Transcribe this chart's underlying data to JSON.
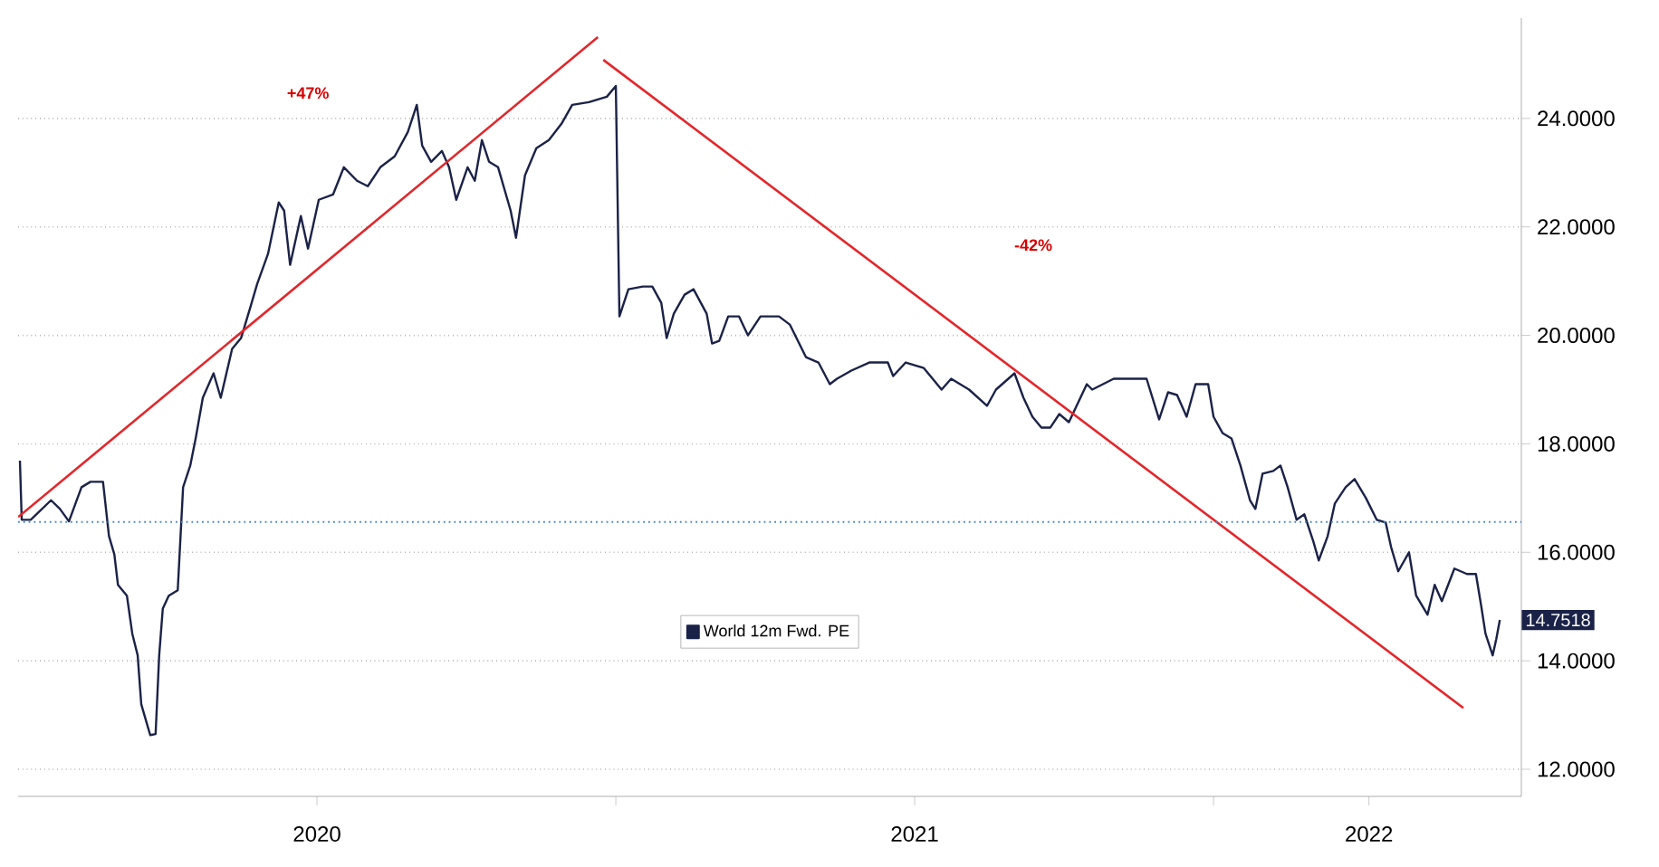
{
  "chart_data": {
    "type": "line",
    "xlim": [
      2020.0,
      2022.515
    ],
    "ylim": [
      11.5,
      25.85
    ],
    "xticks": [
      {
        "value": 2020.5,
        "label": "2020"
      },
      {
        "value": 2021.0,
        "label": null
      },
      {
        "value": 2021.5,
        "label": "2021"
      },
      {
        "value": 2022.0,
        "label": null
      },
      {
        "value": 2022.26,
        "label": "2022"
      }
    ],
    "yticks": [
      {
        "value": 12,
        "label": "12.0000"
      },
      {
        "value": 14,
        "label": "14.0000"
      },
      {
        "value": 16,
        "label": "16.0000"
      },
      {
        "value": 18,
        "label": "18.0000"
      },
      {
        "value": 20,
        "label": "20.0000"
      },
      {
        "value": 22,
        "label": "22.0000"
      },
      {
        "value": 24,
        "label": "24.0000"
      }
    ],
    "grid": "y",
    "legend": "bottom",
    "marker": "none",
    "line_style": "solid",
    "ref_lines": [
      {
        "axis": "y",
        "value": 16.56,
        "color": "#4a86c5",
        "line_style": "dotted"
      }
    ],
    "annotations": [
      "+47%",
      "-42%"
    ],
    "series": [
      {
        "name": "World 12m Fwd. PE",
        "color": "#1b2248",
        "x": [
          2020.003,
          2020.006,
          2020.021,
          2020.055,
          2020.07,
          2020.085,
          2020.106,
          2020.121,
          2020.142,
          2020.152,
          2020.161,
          2020.167,
          2020.182,
          2020.191,
          2020.2,
          2020.206,
          2020.212,
          2020.221,
          2020.23,
          2020.236,
          2020.242,
          2020.252,
          2020.267,
          2020.276,
          2020.288,
          2020.297,
          2020.309,
          2020.327,
          2020.339,
          2020.358,
          2020.373,
          2020.388,
          2020.4,
          2020.418,
          2020.436,
          2020.445,
          2020.455,
          2020.473,
          2020.485,
          2020.503,
          2020.527,
          2020.545,
          2020.567,
          2020.585,
          2020.606,
          2020.63,
          2020.652,
          2020.667,
          2020.676,
          2020.691,
          2020.709,
          2020.721,
          2020.733,
          2020.752,
          2020.764,
          2020.776,
          2020.788,
          2020.803,
          2020.824,
          2020.833,
          2020.848,
          2020.867,
          2020.888,
          2020.909,
          2020.927,
          2020.955,
          2020.985,
          2021.0,
          2021.006,
          2021.021,
          2021.045,
          2021.061,
          2021.076,
          2021.085,
          2021.097,
          2021.115,
          2021.13,
          2021.152,
          2021.161,
          2021.173,
          2021.188,
          2021.206,
          2021.221,
          2021.242,
          2021.273,
          2021.291,
          2021.318,
          2021.339,
          2021.358,
          2021.37,
          2021.394,
          2021.424,
          2021.455,
          2021.464,
          2021.485,
          2021.515,
          2021.545,
          2021.561,
          2021.591,
          2021.621,
          2021.636,
          2021.667,
          2021.682,
          2021.697,
          2021.712,
          2021.727,
          2021.742,
          2021.758,
          2021.788,
          2021.797,
          2021.833,
          2021.864,
          2021.888,
          2021.909,
          2021.924,
          2021.939,
          2021.955,
          2021.97,
          2021.991,
          2022.0,
          2022.015,
          2022.03,
          2022.045,
          2022.061,
          2022.07,
          2022.082,
          2022.1,
          2022.112,
          2022.124,
          2022.139,
          2022.152,
          2022.167,
          2022.176,
          2022.191,
          2022.203,
          2022.221,
          2022.236,
          2022.255,
          2022.273,
          2022.288,
          2022.297,
          2022.309,
          2022.327,
          2022.339,
          2022.358,
          2022.37,
          2022.382,
          2022.403,
          2022.424,
          2022.439,
          2022.448,
          2022.455,
          2022.461,
          2022.467,
          2022.473,
          2022.479
        ],
        "values": [
          17.69,
          16.6,
          16.6,
          16.96,
          16.8,
          16.57,
          17.2,
          17.3,
          17.3,
          16.3,
          15.96,
          15.4,
          15.2,
          14.5,
          14.1,
          13.2,
          12.97,
          12.63,
          12.65,
          14.1,
          14.96,
          15.2,
          15.3,
          17.2,
          17.6,
          18.1,
          18.85,
          19.3,
          18.85,
          19.75,
          19.95,
          20.5,
          20.95,
          21.5,
          22.45,
          22.3,
          21.3,
          22.2,
          21.6,
          22.5,
          22.6,
          23.1,
          22.85,
          22.75,
          23.1,
          23.3,
          23.75,
          24.25,
          23.5,
          23.2,
          23.4,
          23.1,
          22.5,
          23.1,
          22.85,
          23.6,
          23.2,
          23.1,
          22.3,
          21.8,
          22.95,
          23.45,
          23.6,
          23.9,
          24.25,
          24.3,
          24.4,
          24.6,
          20.35,
          20.85,
          20.9,
          20.9,
          20.6,
          19.95,
          20.4,
          20.75,
          20.85,
          20.4,
          19.85,
          19.9,
          20.35,
          20.35,
          20.0,
          20.35,
          20.35,
          20.2,
          19.6,
          19.5,
          19.1,
          19.2,
          19.35,
          19.5,
          19.5,
          19.25,
          19.5,
          19.4,
          19.0,
          19.2,
          19.0,
          18.7,
          19.0,
          19.3,
          18.85,
          18.5,
          18.3,
          18.3,
          18.55,
          18.4,
          19.1,
          19.0,
          19.2,
          19.2,
          19.2,
          18.45,
          18.95,
          18.9,
          18.5,
          19.1,
          19.1,
          18.5,
          18.2,
          18.1,
          17.6,
          16.96,
          16.8,
          17.45,
          17.5,
          17.6,
          17.2,
          16.6,
          16.7,
          16.2,
          15.85,
          16.3,
          16.9,
          17.2,
          17.35,
          17.0,
          16.6,
          16.55,
          16.1,
          15.65,
          16.0,
          15.2,
          14.85,
          15.4,
          15.1,
          15.7,
          15.6,
          15.6,
          15.0,
          14.5,
          14.3,
          14.1,
          14.4,
          14.7518
        ],
        "value_labels": [
          null,
          null,
          null,
          null,
          null,
          null,
          null,
          null,
          null,
          null,
          null,
          null,
          null,
          null,
          null,
          null,
          null,
          null,
          null,
          null,
          null,
          null,
          null,
          null,
          null,
          null,
          null,
          null,
          null,
          null,
          null,
          null,
          null,
          null,
          null,
          null,
          null,
          null,
          null,
          null,
          null,
          null,
          null,
          null,
          null,
          null,
          null,
          null,
          null,
          null,
          null,
          null,
          null,
          null,
          null,
          null,
          null,
          null,
          null,
          null,
          null,
          null,
          null,
          null,
          null,
          null,
          null,
          null,
          null,
          null,
          null,
          null,
          null,
          null,
          null,
          null,
          null,
          null,
          null,
          null,
          null,
          null,
          null,
          null,
          null,
          null,
          null,
          null,
          null,
          null,
          null,
          null,
          null,
          null,
          null,
          null,
          null,
          null,
          null,
          null,
          null,
          null,
          null,
          null,
          null,
          null,
          null,
          null,
          null,
          null,
          null,
          null,
          null,
          null,
          null,
          null,
          null,
          null,
          null,
          null,
          null,
          null,
          null,
          null,
          null,
          null,
          null,
          null,
          null,
          null,
          null,
          null,
          null,
          null,
          null,
          null,
          null,
          null,
          null,
          null,
          null,
          null,
          null,
          null,
          null,
          null,
          null,
          null,
          null,
          null,
          null,
          null,
          null,
          null,
          null,
          "14.7518"
        ]
      },
      {
        "type": "line",
        "color": "#e3262b",
        "x": [
          2020.0,
          2020.97
        ],
        "values": [
          16.65,
          25.5
        ]
      },
      {
        "type": "line",
        "color": "#e3262b",
        "x": [
          2020.979,
          2022.418
        ],
        "values": [
          25.08,
          13.13
        ]
      }
    ]
  }
}
